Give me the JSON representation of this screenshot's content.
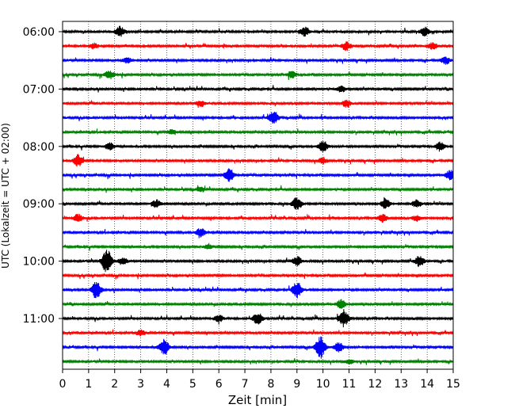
{
  "chart_data": {
    "type": "line",
    "xlabel": "Zeit  [min]",
    "ylabel": "UTC (Lokalzeit = UTC + 02:00)",
    "xlim": [
      0,
      15
    ],
    "x_ticks": [
      "0",
      "1",
      "2",
      "3",
      "4",
      "5",
      "6",
      "7",
      "8",
      "9",
      "10",
      "11",
      "12",
      "13",
      "14",
      "15"
    ],
    "y_tick_labels": [
      "06:00",
      "07:00",
      "08:00",
      "09:00",
      "10:00",
      "11:00"
    ],
    "rows_per_hour": 4,
    "row_minutes": 15,
    "row_count": 24,
    "grid": {
      "vertical_dotted": true
    },
    "trace_colors": [
      "#000000",
      "#ff0000",
      "#0000ff",
      "#008000"
    ],
    "events": [
      {
        "row": 0,
        "x": 2.2,
        "amp": 0.35
      },
      {
        "row": 0,
        "x": 9.3,
        "amp": 0.3
      },
      {
        "row": 0,
        "x": 13.9,
        "amp": 0.3
      },
      {
        "row": 1,
        "x": 1.2,
        "amp": 0.18
      },
      {
        "row": 1,
        "x": 10.9,
        "amp": 0.3
      },
      {
        "row": 1,
        "x": 14.2,
        "amp": 0.22
      },
      {
        "row": 2,
        "x": 2.5,
        "amp": 0.18
      },
      {
        "row": 2,
        "x": 14.7,
        "amp": 0.25
      },
      {
        "row": 3,
        "x": 1.8,
        "amp": 0.28
      },
      {
        "row": 3,
        "x": 8.8,
        "amp": 0.22
      },
      {
        "row": 4,
        "x": 10.7,
        "amp": 0.2
      },
      {
        "row": 5,
        "x": 10.9,
        "amp": 0.25
      },
      {
        "row": 5,
        "x": 5.3,
        "amp": 0.2
      },
      {
        "row": 6,
        "x": 8.1,
        "amp": 0.45
      },
      {
        "row": 7,
        "x": 4.2,
        "amp": 0.15
      },
      {
        "row": 8,
        "x": 10.0,
        "amp": 0.4
      },
      {
        "row": 8,
        "x": 14.5,
        "amp": 0.3
      },
      {
        "row": 8,
        "x": 1.8,
        "amp": 0.25
      },
      {
        "row": 9,
        "x": 0.6,
        "amp": 0.4
      },
      {
        "row": 9,
        "x": 10.0,
        "amp": 0.2
      },
      {
        "row": 10,
        "x": 6.4,
        "amp": 0.5
      },
      {
        "row": 10,
        "x": 14.9,
        "amp": 0.35
      },
      {
        "row": 11,
        "x": 5.3,
        "amp": 0.15
      },
      {
        "row": 12,
        "x": 9.0,
        "amp": 0.45
      },
      {
        "row": 12,
        "x": 12.4,
        "amp": 0.35
      },
      {
        "row": 12,
        "x": 3.6,
        "amp": 0.25
      },
      {
        "row": 12,
        "x": 13.6,
        "amp": 0.25
      },
      {
        "row": 13,
        "x": 0.6,
        "amp": 0.25
      },
      {
        "row": 13,
        "x": 13.6,
        "amp": 0.2
      },
      {
        "row": 13,
        "x": 12.3,
        "amp": 0.25
      },
      {
        "row": 14,
        "x": 5.3,
        "amp": 0.3
      },
      {
        "row": 15,
        "x": 5.6,
        "amp": 0.15
      },
      {
        "row": 16,
        "x": 1.7,
        "amp": 0.9
      },
      {
        "row": 16,
        "x": 13.7,
        "amp": 0.35
      },
      {
        "row": 16,
        "x": 2.3,
        "amp": 0.25
      },
      {
        "row": 16,
        "x": 9.0,
        "amp": 0.3
      },
      {
        "row": 18,
        "x": 1.3,
        "amp": 0.65
      },
      {
        "row": 18,
        "x": 9.0,
        "amp": 0.55
      },
      {
        "row": 19,
        "x": 10.7,
        "amp": 0.3
      },
      {
        "row": 20,
        "x": 10.8,
        "amp": 0.6
      },
      {
        "row": 20,
        "x": 7.5,
        "amp": 0.4
      },
      {
        "row": 20,
        "x": 6.0,
        "amp": 0.25
      },
      {
        "row": 21,
        "x": 3.0,
        "amp": 0.2
      },
      {
        "row": 22,
        "x": 3.9,
        "amp": 0.55
      },
      {
        "row": 22,
        "x": 9.9,
        "amp": 0.8
      },
      {
        "row": 22,
        "x": 10.6,
        "amp": 0.35
      },
      {
        "row": 23,
        "x": 11.0,
        "amp": 0.15
      }
    ]
  }
}
